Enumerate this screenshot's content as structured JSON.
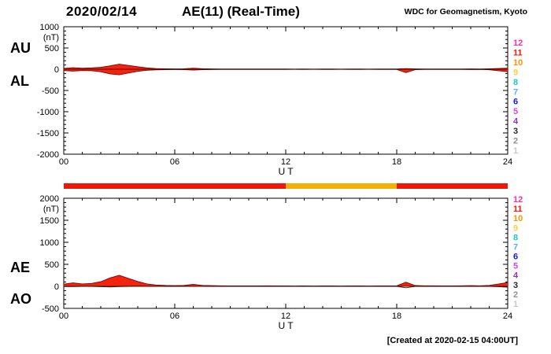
{
  "header": {
    "date": "2020/02/14",
    "title": "AE(11) (Real-Time)",
    "source": "WDC for Geomagnetism, Kyoto"
  },
  "footer": {
    "created": "[Created at 2020-02-15 04:00UT]"
  },
  "station_legend": {
    "labels": [
      "12",
      "11",
      "10",
      "9",
      "8",
      "7",
      "6",
      "5",
      "4",
      "3",
      "2",
      "1"
    ],
    "colors": [
      "#ff2fa0",
      "#ff1500",
      "#ff9400",
      "#ffd040",
      "#19c8c8",
      "#58b0ff",
      "#1414ff",
      "#e040e0",
      "#9030d0",
      "#282828",
      "#909090",
      "#c8c8c8"
    ]
  },
  "quality_bar": {
    "segments": [
      {
        "start": 0,
        "end": 12,
        "color": "#ee1809"
      },
      {
        "start": 12,
        "end": 18,
        "color": "#f2b007"
      },
      {
        "start": 18,
        "end": 24,
        "color": "#ee1809"
      }
    ]
  },
  "chart_data": [
    {
      "type": "area",
      "panel": "au-al",
      "left_labels": [
        "AU",
        "AL"
      ],
      "ylabel": "(nT)",
      "xlabel": "U T",
      "ylim": [
        -2000,
        1000
      ],
      "yticks": [
        1000,
        500,
        0,
        -500,
        -1000,
        -1500,
        -2000
      ],
      "ytick_step": 500,
      "ytick_minor": 100,
      "xlim": [
        0,
        24
      ],
      "xticks": [
        0,
        6,
        12,
        18,
        24
      ],
      "xtick_labels": [
        "00",
        "06",
        "12",
        "18",
        "24"
      ],
      "x_start": 0,
      "x_step": 0.5,
      "series": [
        {
          "name": "AU",
          "fill": "#f3230f",
          "stroke": "#8a0000",
          "values": [
            20,
            35,
            25,
            30,
            45,
            80,
            120,
            90,
            60,
            30,
            15,
            10,
            8,
            10,
            25,
            12,
            8,
            6,
            5,
            5,
            5,
            5,
            6,
            5,
            5,
            4,
            5,
            4,
            5,
            5,
            4,
            5,
            5,
            4,
            5,
            5,
            6,
            15,
            8,
            5,
            6,
            5,
            5,
            6,
            8,
            6,
            10,
            18,
            25
          ]
        },
        {
          "name": "AL",
          "fill": "#f3230f",
          "stroke": "#8a0000",
          "values": [
            -30,
            -45,
            -30,
            -35,
            -60,
            -110,
            -130,
            -90,
            -50,
            -25,
            -15,
            -10,
            -8,
            -10,
            -20,
            -10,
            -8,
            -6,
            -5,
            -5,
            -5,
            -5,
            -6,
            -5,
            -5,
            -4,
            -5,
            -4,
            -5,
            -5,
            -4,
            -5,
            -5,
            -4,
            -5,
            -5,
            -6,
            -80,
            -10,
            -6,
            -6,
            -5,
            -5,
            -6,
            -8,
            -6,
            -12,
            -35,
            -60
          ]
        }
      ]
    },
    {
      "type": "area",
      "panel": "ae-ao",
      "left_labels": [
        "AE",
        "AO"
      ],
      "ylabel": "(nT)",
      "xlabel": "U T",
      "ylim": [
        -500,
        2000
      ],
      "yticks": [
        2000,
        1500,
        1000,
        500,
        0,
        -500
      ],
      "ytick_step": 500,
      "ytick_minor": 100,
      "xlim": [
        0,
        24
      ],
      "xticks": [
        0,
        6,
        12,
        18,
        24
      ],
      "xtick_labels": [
        "00",
        "06",
        "12",
        "18",
        "24"
      ],
      "x_start": 0,
      "x_step": 0.5,
      "series": [
        {
          "name": "AE",
          "fill": "#f3230f",
          "stroke": "#8a0000",
          "values": [
            50,
            80,
            55,
            65,
            105,
            190,
            250,
            180,
            110,
            55,
            30,
            20,
            16,
            20,
            45,
            22,
            16,
            12,
            10,
            10,
            10,
            10,
            12,
            10,
            10,
            8,
            10,
            8,
            10,
            10,
            8,
            10,
            10,
            8,
            10,
            10,
            12,
            95,
            18,
            11,
            12,
            10,
            10,
            12,
            16,
            12,
            22,
            53,
            85
          ]
        },
        {
          "name": "AO",
          "fill": "none",
          "stroke": "#222222",
          "values": [
            -5,
            -5,
            -2,
            -2,
            -8,
            -15,
            -5,
            0,
            5,
            2,
            0,
            0,
            0,
            0,
            2,
            1,
            0,
            0,
            0,
            0,
            0,
            0,
            0,
            0,
            0,
            0,
            0,
            0,
            0,
            0,
            0,
            0,
            0,
            0,
            0,
            0,
            0,
            -32,
            -1,
            0,
            0,
            0,
            0,
            0,
            0,
            0,
            -1,
            -8,
            -18
          ]
        }
      ]
    }
  ]
}
